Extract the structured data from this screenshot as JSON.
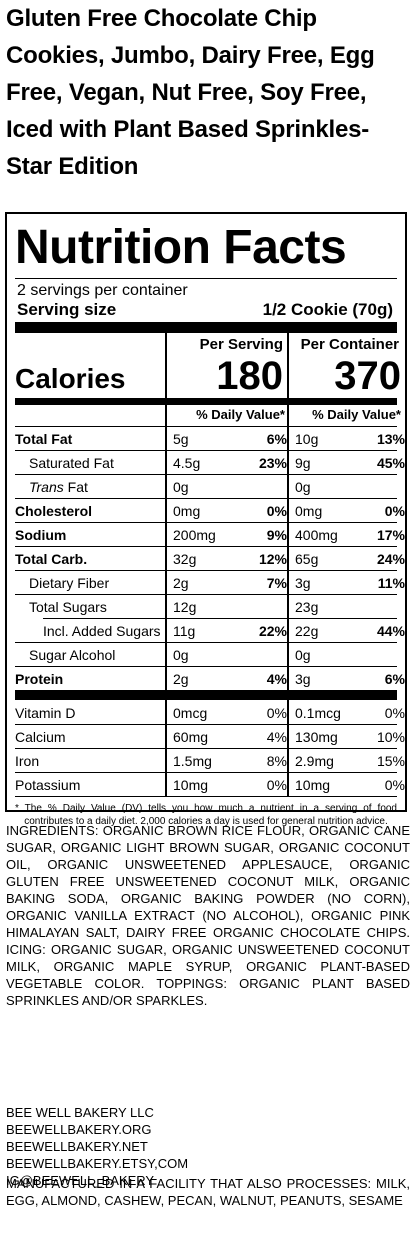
{
  "product_title": "Gluten Free Chocolate Chip Cookies, Jumbo, Dairy Free, Egg Free, Vegan, Nut Free, Soy Free, Iced with Plant Based Sprinkles- Star Edition",
  "label": {
    "heading": "Nutrition Facts",
    "servings_per_container": "2 servings per container",
    "serving_size_label": "Serving size",
    "serving_size_value": "1/2 Cookie (70g)",
    "col_per_serving": "Per Serving",
    "col_per_container": "Per Container",
    "calories_label": "Calories",
    "calories_per_serving": "180",
    "calories_per_container": "370",
    "dv_header": "% Daily Value*",
    "rows": [
      {
        "name": "Total Fat",
        "amt1": "5g",
        "pct1": "6%",
        "amt2": "10g",
        "pct2": "13%"
      },
      {
        "name": "Saturated Fat",
        "amt1": "4.5g",
        "pct1": "23%",
        "amt2": "9g",
        "pct2": "45%"
      },
      {
        "name_italic": "Trans",
        "name_rest": " Fat",
        "amt1": "0g",
        "pct1": "",
        "amt2": "0g",
        "pct2": ""
      },
      {
        "name": "Cholesterol",
        "amt1": "0mg",
        "pct1": "0%",
        "amt2": "0mg",
        "pct2": "0%"
      },
      {
        "name": "Sodium",
        "amt1": "200mg",
        "pct1": "9%",
        "amt2": "400mg",
        "pct2": "17%"
      },
      {
        "name": "Total Carb.",
        "amt1": "32g",
        "pct1": "12%",
        "amt2": "65g",
        "pct2": "24%"
      },
      {
        "name": "Dietary Fiber",
        "amt1": "2g",
        "pct1": "7%",
        "amt2": "3g",
        "pct2": "11%"
      },
      {
        "name": "Total Sugars",
        "amt1": "12g",
        "pct1": "",
        "amt2": "23g",
        "pct2": ""
      },
      {
        "name": "Incl. Added Sugars",
        "amt1": "11g",
        "pct1": "22%",
        "amt2": "22g",
        "pct2": "44%"
      },
      {
        "name": "Sugar Alcohol",
        "amt1": "0g",
        "pct1": "",
        "amt2": "0g",
        "pct2": ""
      },
      {
        "name": "Protein",
        "amt1": "2g",
        "pct1": "4%",
        "amt2": "3g",
        "pct2": "6%"
      }
    ],
    "vitamins": [
      {
        "name": "Vitamin D",
        "amt1": "0mcg",
        "pct1": "0%",
        "amt2": "0.1mcg",
        "pct2": "0%"
      },
      {
        "name": "Calcium",
        "amt1": "60mg",
        "pct1": "4%",
        "amt2": "130mg",
        "pct2": "10%"
      },
      {
        "name": "Iron",
        "amt1": "1.5mg",
        "pct1": "8%",
        "amt2": "2.9mg",
        "pct2": "15%"
      },
      {
        "name": "Potassium",
        "amt1": "10mg",
        "pct1": "0%",
        "amt2": "10mg",
        "pct2": "0%"
      }
    ],
    "footnote": "* The % Daily Value (DV) tells you how much a nutrient in a serving of food contributes to a daily diet. 2,000 calories a day is used for general nutrition advice."
  },
  "ingredients": "INGREDIENTS: ORGANIC BROWN RICE FLOUR, ORGANIC CANE SUGAR, ORGANIC LIGHT BROWN SUGAR, ORGANIC COCONUT OIL, ORGANIC UNSWEETENED APPLESAUCE, ORGANIC GLUTEN FREE UNSWEETENED COCONUT MILK, ORGANIC BAKING SODA, ORGANIC BAKING POWDER (NO CORN), ORGANIC VANILLA EXTRACT (NO ALCOHOL), ORGANIC PINK HIMALAYAN SALT, DAIRY FREE ORGANIC CHOCOLATE CHIPS. ICING: ORGANIC SUGAR, ORGANIC UNSWEETENED COCONUT MILK, ORGANIC MAPLE SYRUP, ORGANIC PLANT-BASED VEGETABLE COLOR. TOPPINGS: ORGANIC PLANT BASED SPRINKLES AND/OR SPARKLES.",
  "company": {
    "name": "BEE WELL BAKERY LLC",
    "site_org": "BEEWELLBAKERY.ORG",
    "site_net": "BEEWELLBAKERY.NET",
    "etsy": "BEEWELLBAKERY.ETSY,COM",
    "ig": "IG@BEEWELL_BAKERY"
  },
  "facility": "MANUFACTURED IN A FACILITY THAT ALSO PROCESSES: MILK, EGG, ALMOND, CASHEW, PECAN, WALNUT, PEANUTS, SESAME"
}
